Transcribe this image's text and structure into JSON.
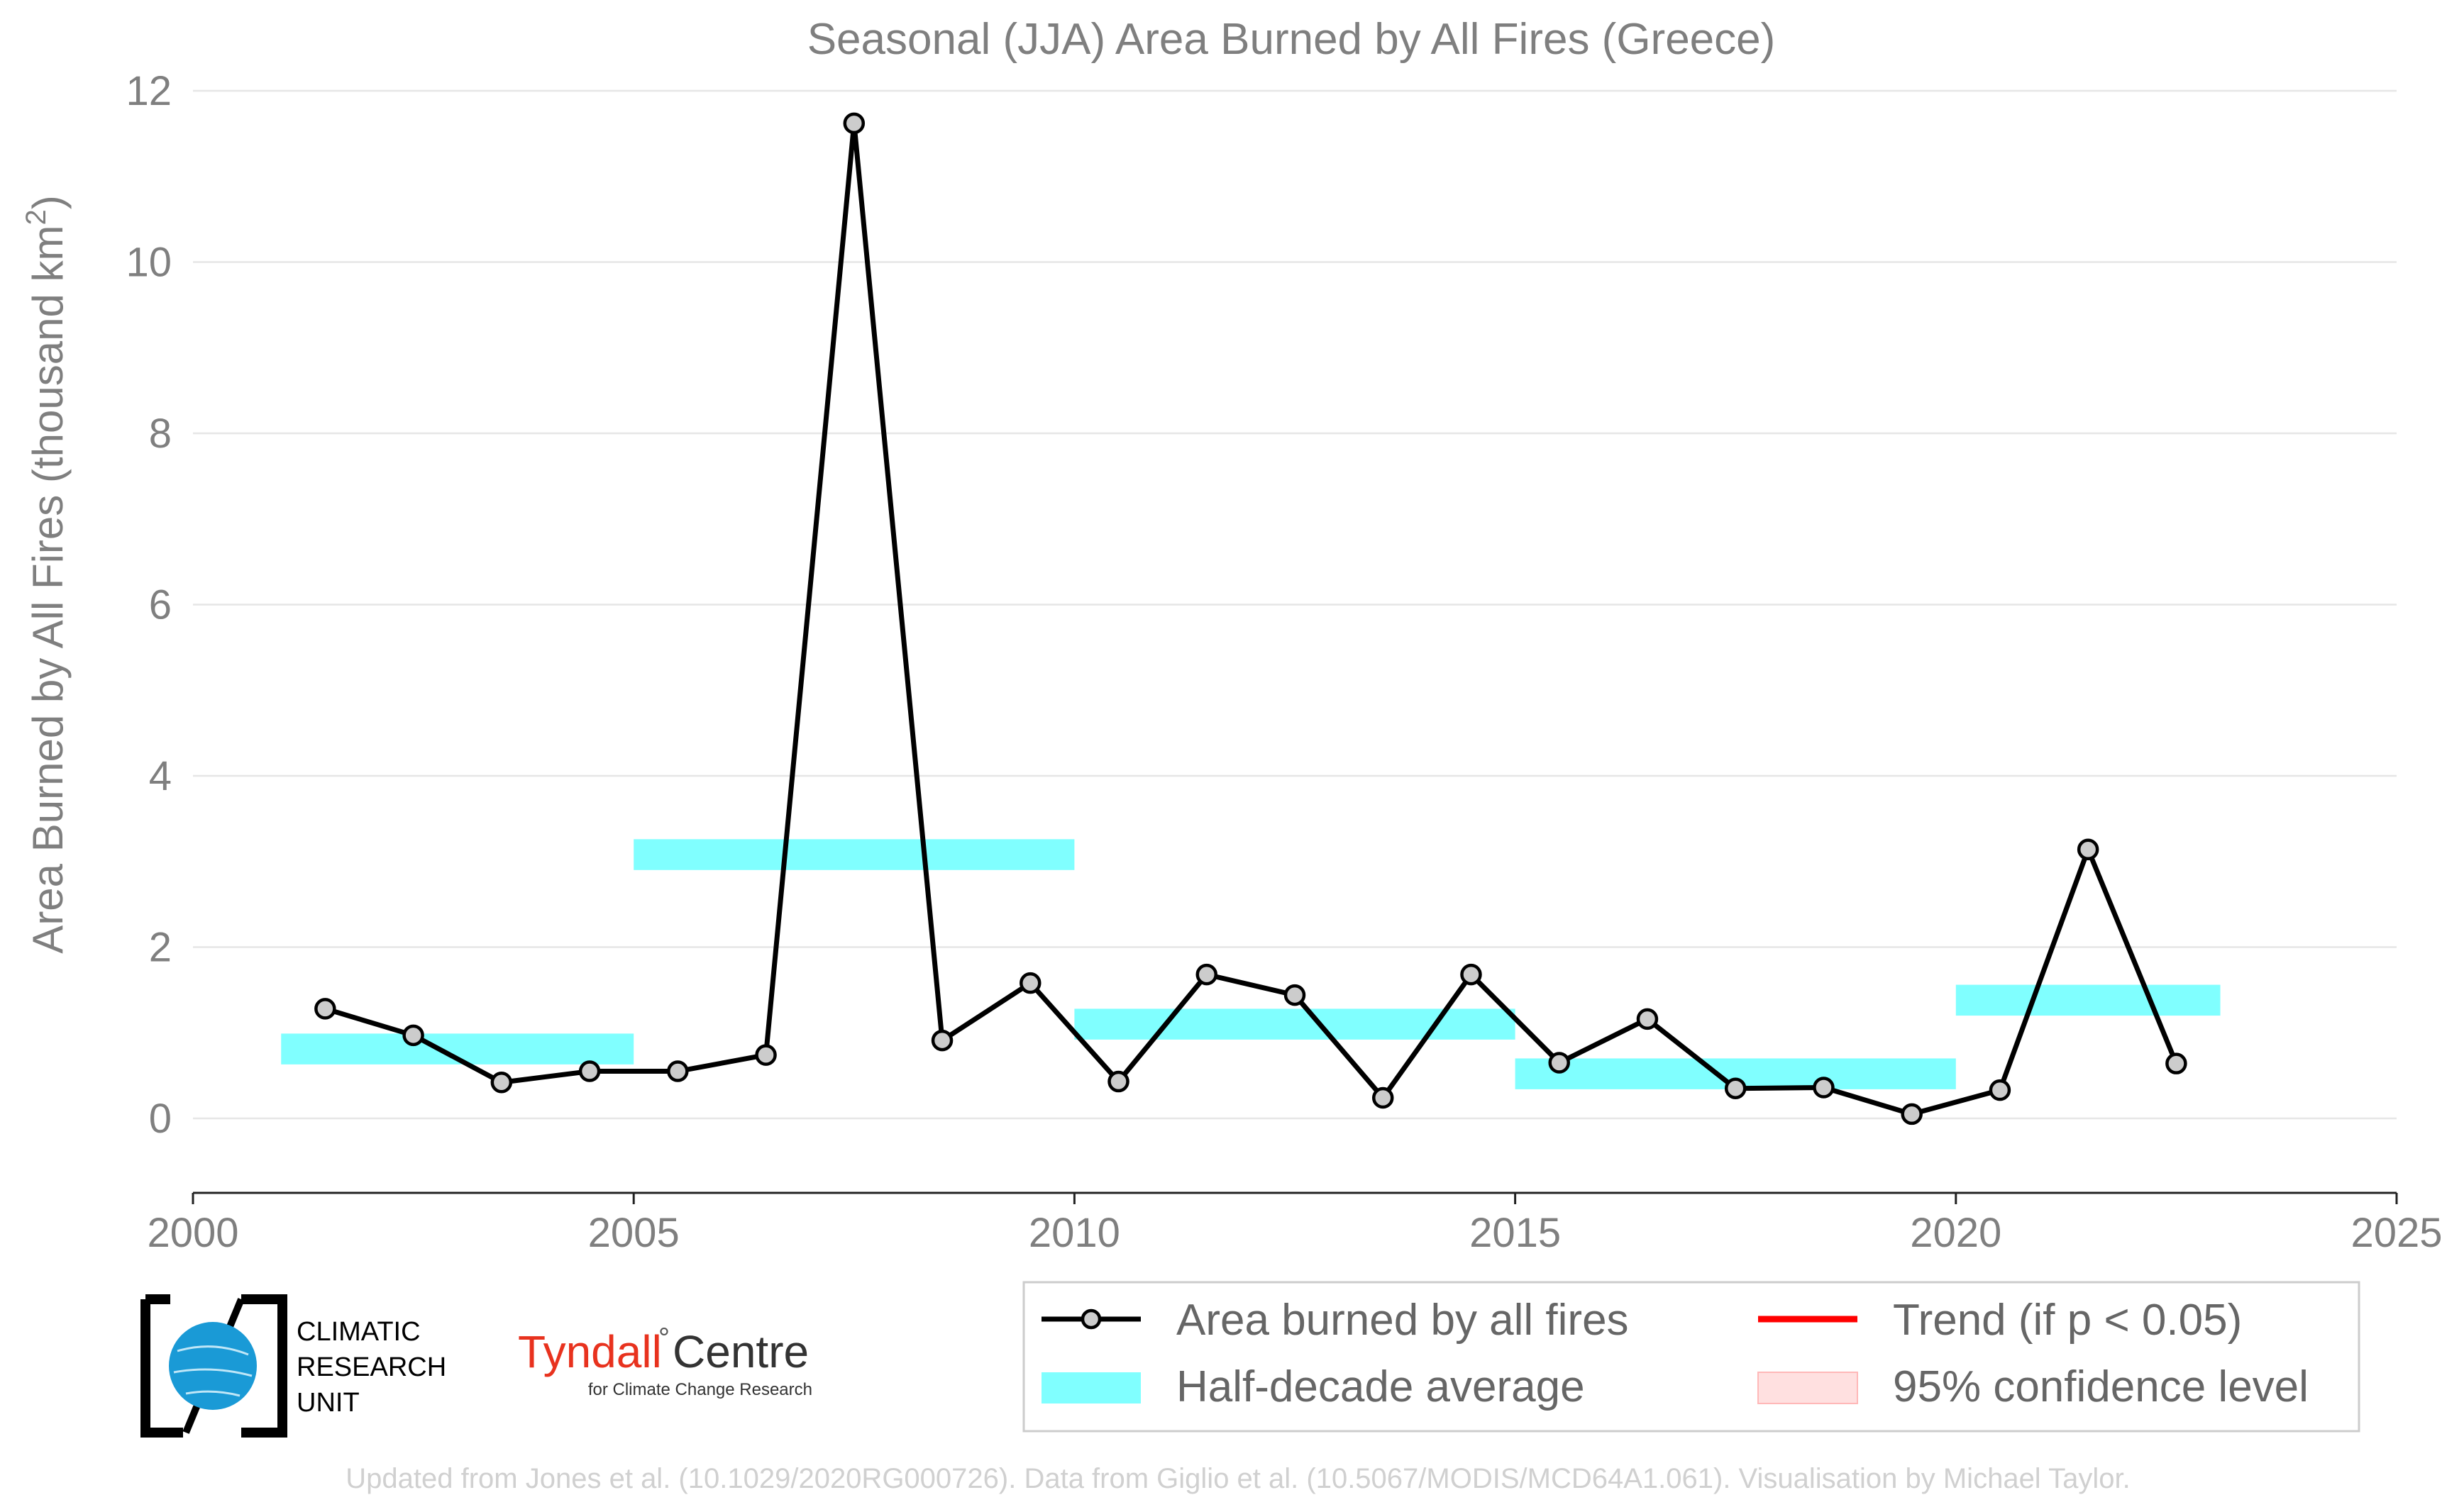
{
  "chart_data": {
    "type": "line",
    "title": "Seasonal (JJA) Area Burned by All Fires (Greece)",
    "ylabel": "Area Burned by All Fires (thousand km",
    "ylabel_sup": "2",
    "ylabel_end": ")",
    "xlabel": "",
    "xlim": [
      2000,
      2025
    ],
    "ylim": [
      -0.87,
      12
    ],
    "xticks": [
      "2000",
      "2005",
      "2010",
      "2015",
      "2020",
      "2025"
    ],
    "yticks": [
      "0",
      "2",
      "4",
      "6",
      "8",
      "10",
      "12"
    ],
    "series": [
      {
        "name": "Area burned by all fires",
        "x": [
          2001.5,
          2002.5,
          2003.5,
          2004.5,
          2005.5,
          2006.5,
          2007.5,
          2008.5,
          2009.5,
          2010.5,
          2011.5,
          2012.5,
          2013.5,
          2014.5,
          2015.5,
          2016.5,
          2017.5,
          2018.5,
          2019.5,
          2020.5,
          2021.5,
          2022.5
        ],
        "values": [
          1.28,
          0.97,
          0.42,
          0.55,
          0.55,
          0.74,
          11.62,
          0.91,
          1.58,
          0.43,
          1.68,
          1.44,
          0.24,
          1.68,
          0.65,
          1.16,
          0.35,
          0.36,
          0.05,
          0.33,
          3.14,
          0.64
        ]
      }
    ],
    "half_decade_average": [
      {
        "x_start": 2001,
        "x_end": 2005,
        "value": 0.81
      },
      {
        "x_start": 2005,
        "x_end": 2010,
        "value": 3.08
      },
      {
        "x_start": 2010,
        "x_end": 2015,
        "value": 1.1
      },
      {
        "x_start": 2015,
        "x_end": 2020,
        "value": 0.52
      },
      {
        "x_start": 2020,
        "x_end": 2023,
        "value": 1.38
      }
    ],
    "legend": {
      "placement": "bottom-right",
      "items": [
        {
          "label": "Area burned by all fires",
          "kind": "line-marker",
          "color": "#000000"
        },
        {
          "label": "Trend (if p < 0.05)",
          "kind": "line",
          "color": "#ff0000"
        },
        {
          "label": "Half-decade average",
          "kind": "patch",
          "color": "#80ffff"
        },
        {
          "label": "95% confidence level",
          "kind": "patch",
          "color": "#ffe0e0"
        }
      ]
    },
    "grid": true
  },
  "logos": {
    "cru_line1": "CLIMATIC",
    "cru_line2": "RESEARCH",
    "cru_line3": "UNIT",
    "tyndall_name": "Tyndall",
    "tyndall_degree": "°",
    "tyndall_centre": "Centre",
    "tyndall_sub": "for Climate Change Research"
  },
  "footer": "Updated from Jones et al. (10.1029/2020RG000726). Data from Giglio et al. (10.5067/MODIS/MCD64A1.061). Visualisation by Michael Taylor.",
  "colors": {
    "line": "#000000",
    "marker_fill": "#cccccc",
    "average": "#80ffff",
    "trend": "#ff0000",
    "confidence": "#ffe0e0",
    "text": "#7f7f7f",
    "cru_blue": "#1a9ad6",
    "tyndall_red": "#e8321e"
  }
}
